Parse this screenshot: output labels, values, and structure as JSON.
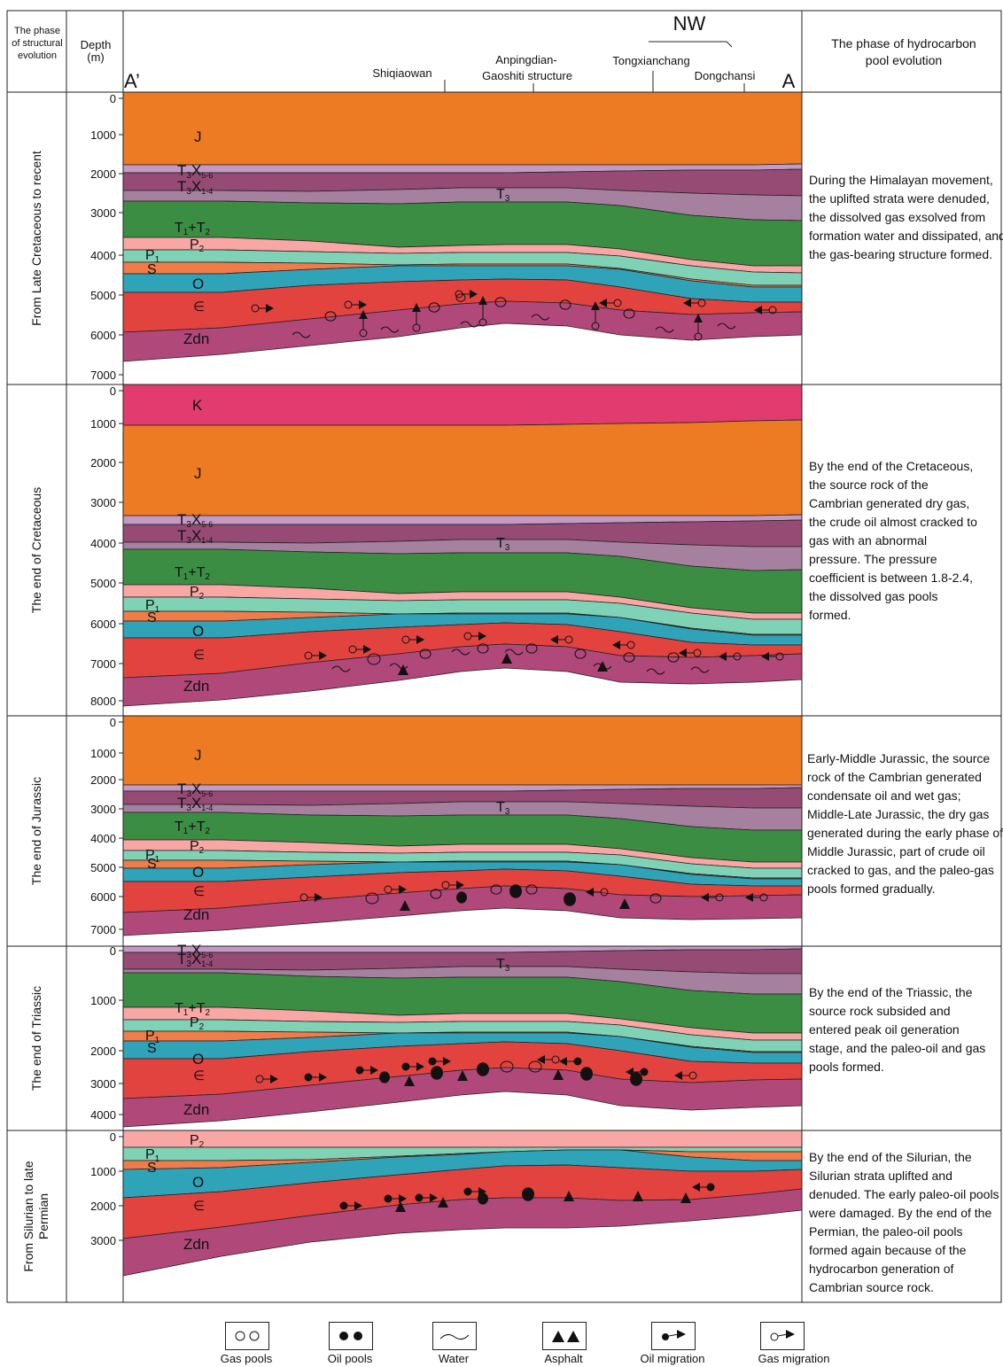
{
  "header": {
    "col_phase": "The phase of structural evolution",
    "col_depth": "Depth (m)",
    "col_right": "The phase of hydrocarbon pool evolution",
    "north": "NW",
    "left_end": "A’",
    "right_end": "A",
    "locations": [
      "Shiqiaowan",
      "Anpingdian-",
      "Gaoshiti structure",
      "Tongxianchang",
      "Dongchansi"
    ]
  },
  "panels": [
    {
      "phase": "From Late Cretaceous to recent",
      "depth_ticks": [
        "0",
        "1000",
        "2000",
        "3000",
        "4000",
        "5000",
        "6000",
        "7000"
      ],
      "description": "During the Himalayan movement, the uplifted strata were denuded, the dissolved gas exsolved from formation water and dissipated, and the gas-bearing structure formed.",
      "strata": [
        "J",
        "T3x5-6",
        "T3x1-4",
        "T3",
        "T1+T2",
        "P2",
        "P1",
        "S",
        "O",
        "∈",
        "Zdn"
      ]
    },
    {
      "phase": "The end of Cretaceous",
      "depth_ticks": [
        "0",
        "1000",
        "2000",
        "3000",
        "4000",
        "5000",
        "6000",
        "7000",
        "8000"
      ],
      "description": "By the end of the Cretaceous, the source rock of the Cambrian generated dry gas, the crude oil almost cracked to gas with an abnormal pressure. The pressure coefficient is between 1.8-2.4, the dissolved gas pools formed.",
      "strata": [
        "K",
        "J",
        "T3x5-6",
        "T3x1-4",
        "T3",
        "T1+T2",
        "P2",
        "P1",
        "S",
        "O",
        "∈",
        "Zdn"
      ]
    },
    {
      "phase": "The end of Jurassic",
      "depth_ticks": [
        "0",
        "1000",
        "2000",
        "3000",
        "4000",
        "5000",
        "6000",
        "7000"
      ],
      "description": "Early-Middle Jurassic, the source rock of the Cambrian generated condensate oil and wet gas; Middle-Late Jurassic, the dry gas generated during the early phase of Middle Jurassic, part of crude oil cracked to gas, and the paleo-gas pools formed gradually.",
      "strata": [
        "J",
        "T3x5-6",
        "T3x1-4",
        "T3",
        "T1+T2",
        "P2",
        "P1",
        "S",
        "O",
        "∈",
        "Zdn"
      ]
    },
    {
      "phase": "The end of Triassic",
      "depth_ticks": [
        "0",
        "1000",
        "2000",
        "3000",
        "4000"
      ],
      "description": "By the end of the Triassic, the source rock subsided and entered peak oil generation stage, and the paleo-oil and gas pools formed.",
      "strata": [
        "T3x5-6",
        "T3x1-4",
        "T3",
        "T1+T2",
        "P2",
        "P1",
        "S",
        "O",
        "∈",
        "Zdn"
      ]
    },
    {
      "phase": "From Silurian to late Permian",
      "depth_ticks": [
        "0",
        "1000",
        "2000",
        "3000"
      ],
      "description": "By the end of the Silurian, the Silurian strata uplifted and denuded. The early paleo-oil pools were damaged. By the end of the Permian, the paleo-oil pools formed again because of the hydrocarbon generation of Cambrian source rock.",
      "strata": [
        "P2",
        "P1",
        "S",
        "O",
        "∈",
        "Zdn"
      ]
    }
  ],
  "legend": [
    "Gas pools",
    "Oil pools",
    "Water",
    "Asphalt",
    "Oil migration",
    "Gas migration"
  ],
  "colors": {
    "K": "#e23b6f",
    "J": "#ed7b23",
    "T3x56": "#c49ac5",
    "T3x14": "#964b74",
    "T3": "#a6819f",
    "T12": "#3c8d44",
    "P2": "#f8a7a5",
    "P1": "#7fd2b6",
    "S": "#f07c4a",
    "O": "#2fa3b7",
    "Cm": "#e2433e",
    "Zdn": "#b1487a"
  }
}
